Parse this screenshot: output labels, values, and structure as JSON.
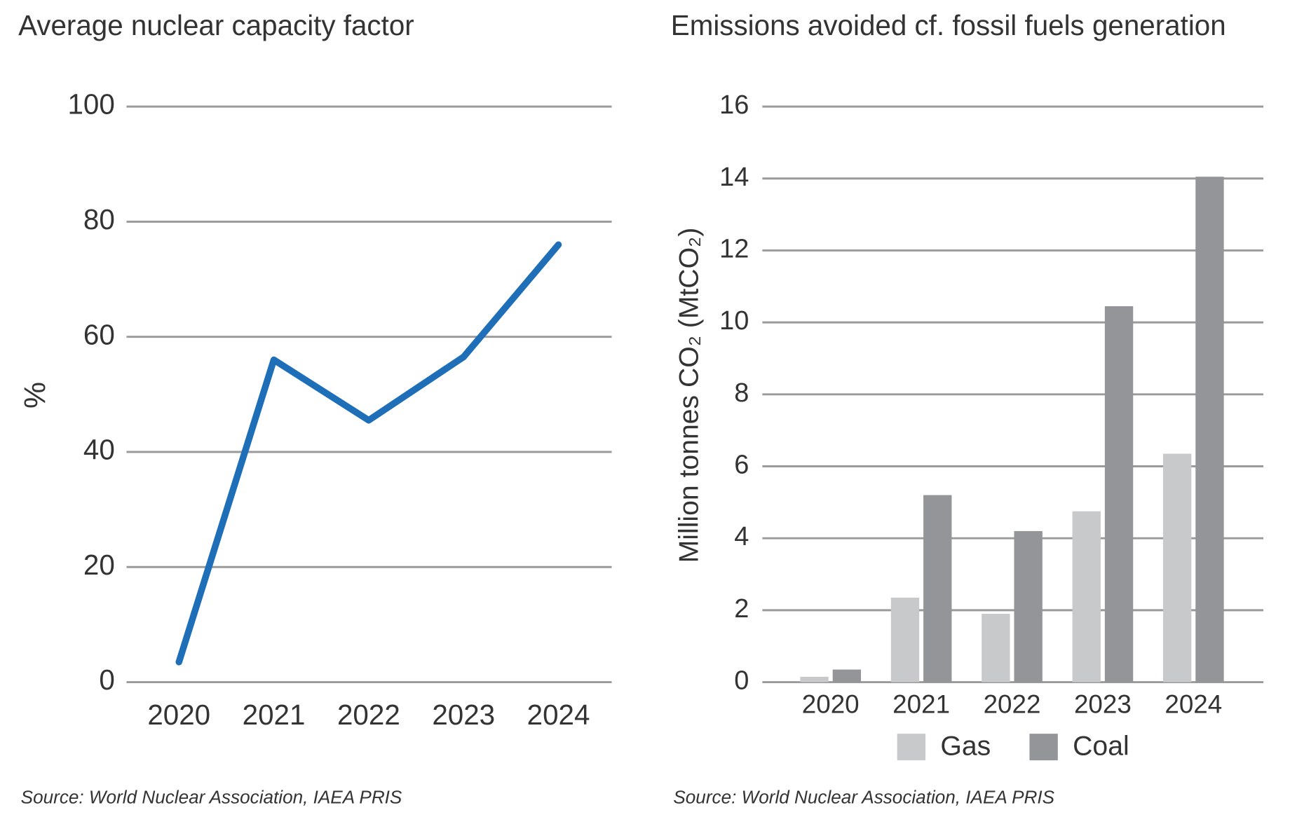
{
  "chart_data": [
    {
      "type": "line",
      "title": "Average nuclear capacity factor",
      "y_label": "%",
      "categories": [
        "2020",
        "2021",
        "2022",
        "2023",
        "2024"
      ],
      "values": [
        3.5,
        56,
        45.5,
        56.5,
        76
      ],
      "color": "#1f6fb8",
      "ylim": [
        0,
        100
      ],
      "yticks": [
        0,
        20,
        40,
        60,
        80,
        100
      ],
      "grid": true,
      "source": "Source: World Nuclear Association, IAEA PRIS"
    },
    {
      "type": "bar",
      "title": "Emissions avoided cf. fossil fuels generation",
      "y_label": "Million tonnes CO₂ (MtCO₂)",
      "categories": [
        "2020",
        "2021",
        "2022",
        "2023",
        "2024"
      ],
      "series": [
        {
          "name": "Gas",
          "color": "#c8c9cb",
          "values": [
            0.15,
            2.35,
            1.9,
            4.75,
            6.35
          ]
        },
        {
          "name": "Coal",
          "color": "#939598",
          "values": [
            0.35,
            5.2,
            4.2,
            10.45,
            14.05
          ]
        }
      ],
      "ylim": [
        0,
        16
      ],
      "yticks": [
        0,
        2,
        4,
        6,
        8,
        10,
        12,
        14,
        16
      ],
      "grid": true,
      "legend": "bottom",
      "source": "Source: World Nuclear Association, IAEA PRIS"
    }
  ]
}
